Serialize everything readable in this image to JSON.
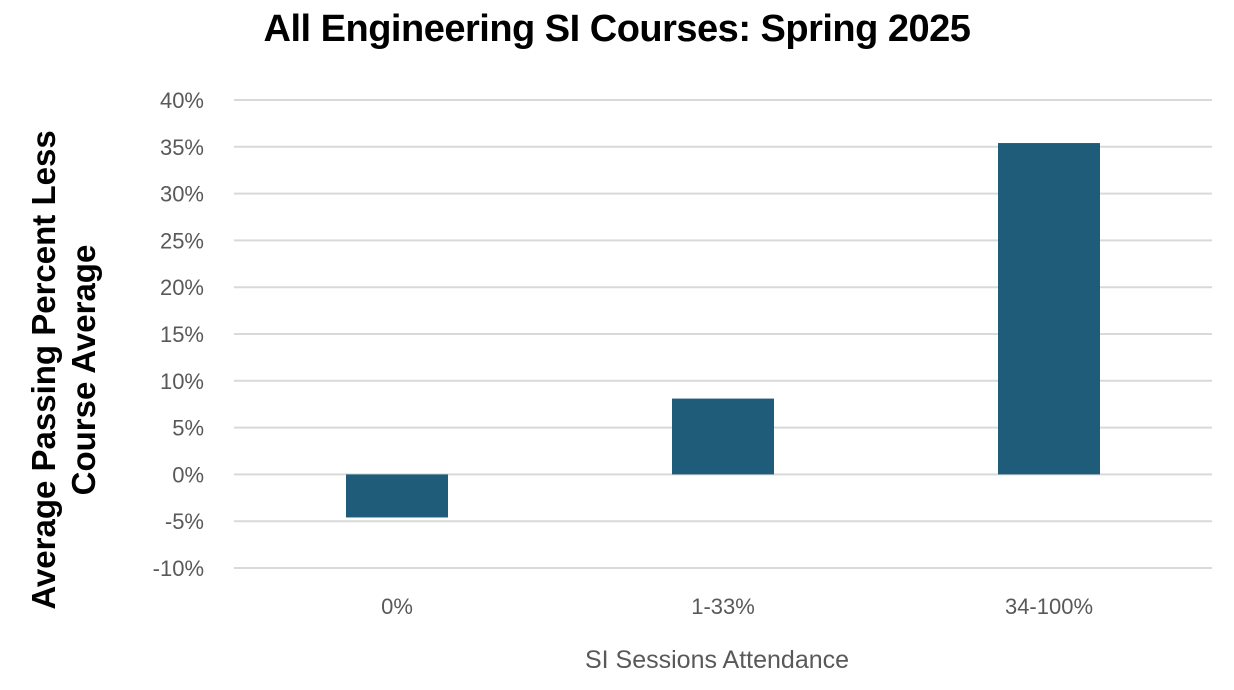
{
  "chart_data": {
    "type": "bar",
    "title": "All Engineering SI Courses: Spring 2025",
    "xlabel": "SI Sessions Attendance",
    "ylabel": [
      "Average Passing Percent Less",
      "Course Average"
    ],
    "categories": [
      "0%",
      "1-33%",
      "34-100%"
    ],
    "values": [
      -4.6,
      8.1,
      35.4
    ],
    "ylim": [
      -10,
      40
    ],
    "yticks": [
      -10,
      -5,
      0,
      5,
      10,
      15,
      20,
      25,
      30,
      35,
      40
    ],
    "ytick_labels": [
      "-10%",
      "-5%",
      "0%",
      "5%",
      "10%",
      "15%",
      "20%",
      "25%",
      "30%",
      "35%",
      "40%"
    ],
    "grid": true,
    "legend": "none",
    "bar_color": "#1F5C7A",
    "grid_color": "#D9D9D9"
  }
}
